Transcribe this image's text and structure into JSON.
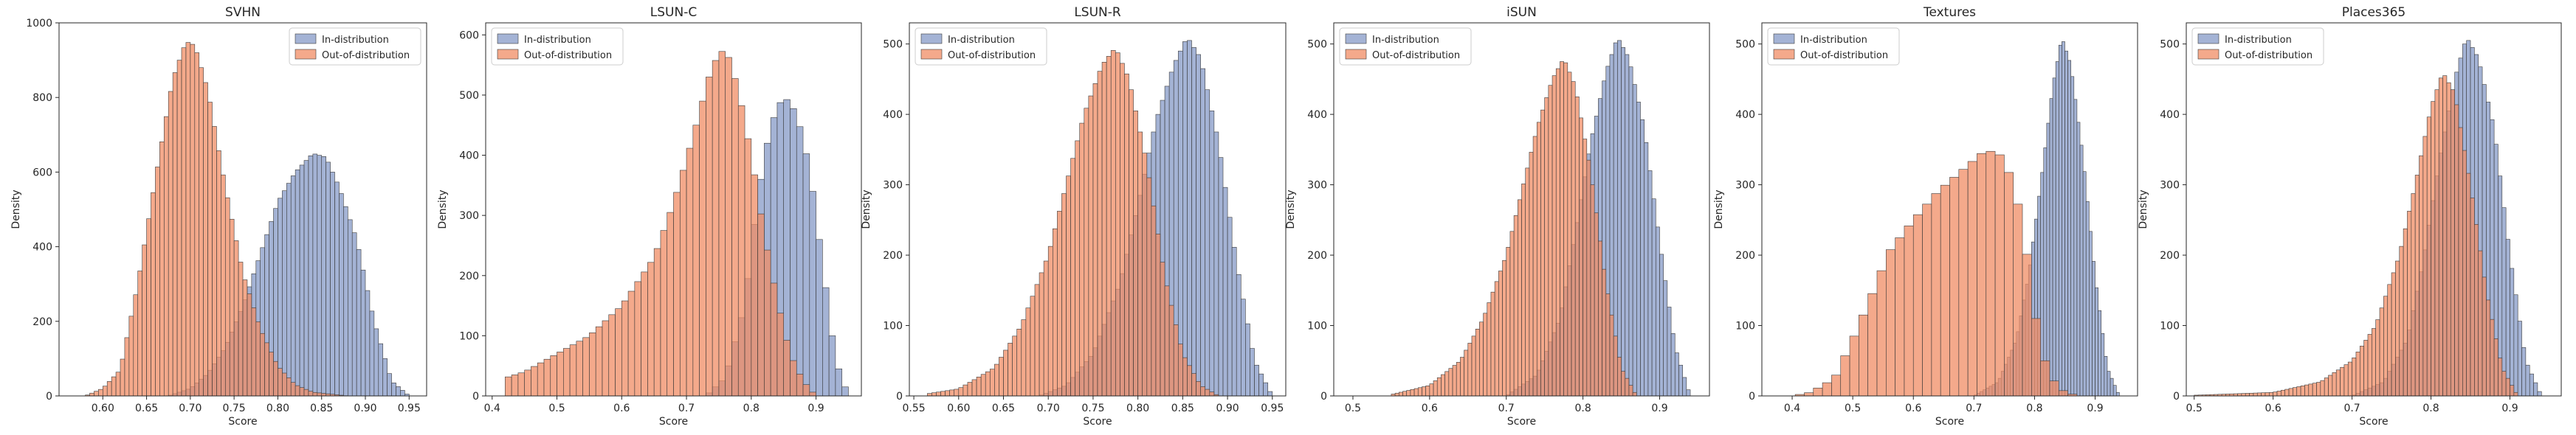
{
  "colors": {
    "in": "#8da0cb",
    "out": "#f08c64",
    "edge": "#3b3b3b"
  },
  "chart_data": [
    {
      "type": "histogram",
      "title": "SVHN",
      "xlabel": "Score",
      "ylabel": "Density",
      "xlim": [
        0.55,
        0.97
      ],
      "ylim": [
        0,
        1000
      ],
      "xticks": [
        0.6,
        0.65,
        0.7,
        0.75,
        0.8,
        0.85,
        0.9,
        0.95
      ],
      "xticklabels": [
        "0.60",
        "0.65",
        "0.70",
        "0.75",
        "0.80",
        "0.85",
        "0.90",
        "0.95"
      ],
      "yticks": [
        0,
        200,
        400,
        600,
        800,
        1000
      ],
      "bin_width": 0.005,
      "legend": {
        "position": "top-right",
        "in_label": "In-distribution",
        "out_label": "Out-of-distribution"
      },
      "series": [
        {
          "name": "In-distribution",
          "role": "in",
          "x": [
            0.675,
            0.7,
            0.72,
            0.74,
            0.76,
            0.78,
            0.8,
            0.82,
            0.84,
            0.855,
            0.87,
            0.89,
            0.91,
            0.93,
            0.95
          ],
          "y": [
            0,
            20,
            60,
            130,
            240,
            380,
            520,
            600,
            650,
            640,
            560,
            420,
            200,
            40,
            0
          ]
        },
        {
          "name": "Out-of-distribution",
          "role": "out",
          "x": [
            0.58,
            0.6,
            0.62,
            0.64,
            0.66,
            0.68,
            0.695,
            0.705,
            0.72,
            0.74,
            0.76,
            0.78,
            0.8,
            0.82,
            0.84,
            0.86,
            0.88
          ],
          "y": [
            0,
            20,
            70,
            300,
            580,
            850,
            950,
            940,
            820,
            560,
            330,
            180,
            80,
            30,
            10,
            5,
            0
          ]
        }
      ]
    },
    {
      "type": "histogram",
      "title": "LSUN-C",
      "xlabel": "Score",
      "ylabel": "Density",
      "xlim": [
        0.39,
        0.97
      ],
      "ylim": [
        0,
        620
      ],
      "xticks": [
        0.4,
        0.5,
        0.6,
        0.7,
        0.8,
        0.9
      ],
      "xticklabels": [
        "0.4",
        "0.5",
        "0.6",
        "0.7",
        "0.8",
        "0.9"
      ],
      "yticks": [
        0,
        100,
        200,
        300,
        400,
        500,
        600
      ],
      "bin_width": 0.01,
      "legend": {
        "position": "top-left",
        "in_label": "In-distribution",
        "out_label": "Out-of-distribution"
      },
      "series": [
        {
          "name": "In-distribution",
          "role": "in",
          "x": [
            0.73,
            0.76,
            0.79,
            0.81,
            0.83,
            0.85,
            0.87,
            0.89,
            0.91,
            0.93,
            0.95
          ],
          "y": [
            0,
            30,
            150,
            330,
            450,
            500,
            470,
            380,
            220,
            60,
            0
          ]
        },
        {
          "name": "Out-of-distribution",
          "role": "out",
          "x": [
            0.42,
            0.45,
            0.5,
            0.55,
            0.6,
            0.65,
            0.68,
            0.71,
            0.74,
            0.76,
            0.78,
            0.8,
            0.82,
            0.84,
            0.86,
            0.88,
            0.9
          ],
          "y": [
            30,
            40,
            70,
            100,
            150,
            230,
            320,
            430,
            550,
            580,
            510,
            400,
            270,
            160,
            70,
            25,
            0
          ]
        }
      ]
    },
    {
      "type": "histogram",
      "title": "LSUN-R",
      "xlabel": "Score",
      "ylabel": "Density",
      "xlim": [
        0.545,
        0.965
      ],
      "ylim": [
        0,
        530
      ],
      "xticks": [
        0.55,
        0.6,
        0.65,
        0.7,
        0.75,
        0.8,
        0.85,
        0.9,
        0.95
      ],
      "xticklabels": [
        "0.55",
        "0.60",
        "0.65",
        "0.70",
        "0.75",
        "0.80",
        "0.85",
        "0.90",
        "0.95"
      ],
      "yticks": [
        0,
        100,
        200,
        300,
        400,
        500
      ],
      "bin_width": 0.005,
      "legend": {
        "position": "top-left",
        "in_label": "In-distribution",
        "out_label": "Out-of-distribution"
      },
      "series": [
        {
          "name": "In-distribution",
          "role": "in",
          "x": [
            0.69,
            0.72,
            0.75,
            0.78,
            0.8,
            0.82,
            0.84,
            0.855,
            0.87,
            0.89,
            0.91,
            0.93,
            0.95
          ],
          "y": [
            0,
            15,
            60,
            160,
            270,
            390,
            470,
            510,
            480,
            360,
            190,
            50,
            0
          ]
        },
        {
          "name": "Out-of-distribution",
          "role": "out",
          "x": [
            0.56,
            0.6,
            0.64,
            0.67,
            0.7,
            0.72,
            0.74,
            0.76,
            0.775,
            0.79,
            0.81,
            0.83,
            0.85,
            0.87,
            0.89
          ],
          "y": [
            2,
            10,
            40,
            100,
            200,
            300,
            400,
            470,
            495,
            450,
            330,
            170,
            60,
            15,
            0
          ]
        }
      ]
    },
    {
      "type": "histogram",
      "title": "iSUN",
      "xlabel": "Score",
      "ylabel": "Density",
      "xlim": [
        0.475,
        0.965
      ],
      "ylim": [
        0,
        530
      ],
      "xticks": [
        0.5,
        0.6,
        0.7,
        0.8,
        0.9
      ],
      "xticklabels": [
        "0.5",
        "0.6",
        "0.7",
        "0.8",
        "0.9"
      ],
      "yticks": [
        0,
        100,
        200,
        300,
        400,
        500
      ],
      "bin_width": 0.005,
      "legend": {
        "position": "top-left",
        "in_label": "In-distribution",
        "out_label": "Out-of-distribution"
      },
      "series": [
        {
          "name": "In-distribution",
          "role": "in",
          "x": [
            0.7,
            0.74,
            0.77,
            0.79,
            0.81,
            0.83,
            0.845,
            0.86,
            0.88,
            0.9,
            0.92,
            0.94
          ],
          "y": [
            0,
            30,
            110,
            230,
            360,
            460,
            510,
            480,
            380,
            220,
            70,
            0
          ]
        },
        {
          "name": "Out-of-distribution",
          "role": "out",
          "x": [
            0.55,
            0.6,
            0.64,
            0.67,
            0.7,
            0.72,
            0.74,
            0.76,
            0.775,
            0.79,
            0.81,
            0.83,
            0.85,
            0.87
          ],
          "y": [
            2,
            15,
            50,
            110,
            200,
            290,
            380,
            450,
            480,
            440,
            320,
            160,
            40,
            0
          ]
        }
      ]
    },
    {
      "type": "histogram",
      "title": "Textures",
      "xlabel": "Score",
      "ylabel": "Density",
      "xlim": [
        0.35,
        0.97
      ],
      "ylim": [
        0,
        530
      ],
      "xticks": [
        0.4,
        0.5,
        0.6,
        0.7,
        0.8,
        0.9
      ],
      "xticklabels": [
        "0.4",
        "0.5",
        "0.6",
        "0.7",
        "0.8",
        "0.9"
      ],
      "yticks": [
        0,
        100,
        200,
        300,
        400,
        500
      ],
      "bin_width": 0.015,
      "in_bin_width": 0.005,
      "legend": {
        "position": "top-left",
        "in_label": "In-distribution",
        "out_label": "Out-of-distribution"
      },
      "series": [
        {
          "name": "In-distribution",
          "role": "in",
          "x": [
            0.7,
            0.74,
            0.77,
            0.79,
            0.81,
            0.83,
            0.845,
            0.86,
            0.88,
            0.9,
            0.92,
            0.94
          ],
          "y": [
            0,
            20,
            80,
            170,
            300,
            440,
            510,
            470,
            340,
            170,
            40,
            0
          ]
        },
        {
          "name": "Out-of-distribution",
          "role": "out",
          "x": [
            0.4,
            0.43,
            0.47,
            0.5,
            0.53,
            0.56,
            0.6,
            0.64,
            0.68,
            0.72,
            0.75,
            0.78,
            0.8,
            0.82,
            0.84,
            0.87
          ],
          "y": [
            0,
            5,
            25,
            80,
            140,
            205,
            250,
            290,
            320,
            350,
            340,
            250,
            120,
            40,
            10,
            0
          ]
        }
      ]
    },
    {
      "type": "histogram",
      "title": "Places365",
      "xlabel": "Score",
      "ylabel": "Density",
      "xlim": [
        0.49,
        0.965
      ],
      "ylim": [
        0,
        530
      ],
      "xticks": [
        0.5,
        0.6,
        0.7,
        0.8,
        0.9
      ],
      "xticklabels": [
        "0.5",
        "0.6",
        "0.7",
        "0.8",
        "0.9"
      ],
      "yticks": [
        0,
        100,
        200,
        300,
        400,
        500
      ],
      "bin_width": 0.005,
      "legend": {
        "position": "top-left",
        "in_label": "In-distribution",
        "out_label": "Out-of-distribution"
      },
      "series": [
        {
          "name": "In-distribution",
          "role": "in",
          "x": [
            0.7,
            0.74,
            0.77,
            0.79,
            0.81,
            0.83,
            0.845,
            0.86,
            0.88,
            0.9,
            0.92,
            0.94
          ],
          "y": [
            0,
            20,
            80,
            190,
            330,
            450,
            510,
            480,
            380,
            200,
            50,
            0
          ]
        },
        {
          "name": "Out-of-distribution",
          "role": "out",
          "x": [
            0.5,
            0.6,
            0.66,
            0.7,
            0.73,
            0.76,
            0.78,
            0.8,
            0.815,
            0.83,
            0.85,
            0.87,
            0.89,
            0.91
          ],
          "y": [
            1,
            5,
            20,
            50,
            100,
            200,
            300,
            410,
            460,
            430,
            300,
            150,
            40,
            0
          ]
        }
      ]
    }
  ]
}
